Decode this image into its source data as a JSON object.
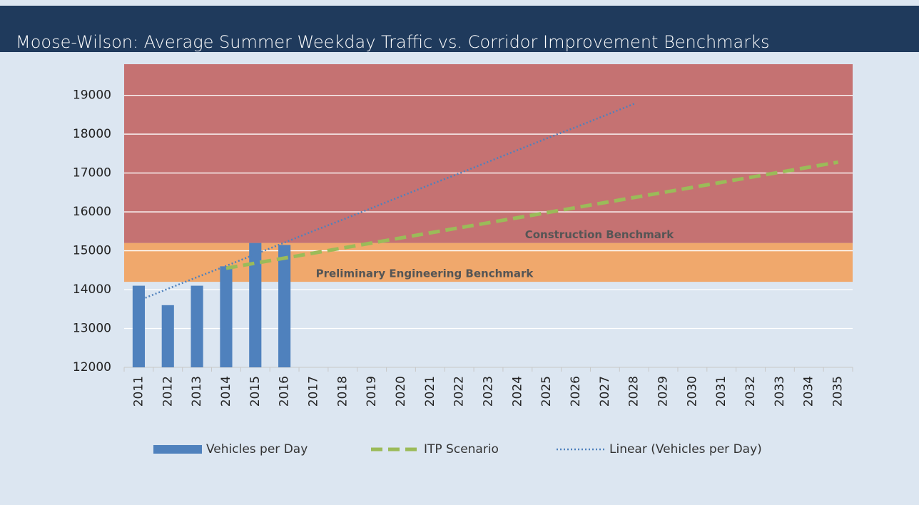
{
  "chart_data": {
    "type": "bar",
    "title": "Moose-Wilson: Average Summer Weekday Traffic vs. Corridor Improvement Benchmarks",
    "categories": [
      "2011",
      "2012",
      "2013",
      "2014",
      "2015",
      "2016",
      "2017",
      "2018",
      "2019",
      "2020",
      "2021",
      "2022",
      "2023",
      "2024",
      "2025",
      "2026",
      "2027",
      "2028",
      "2029",
      "2030",
      "2031",
      "2032",
      "2033",
      "2034",
      "2035"
    ],
    "series": [
      {
        "name": "Vehicles per Day",
        "style": "bar",
        "color": "#4f81bd",
        "values": [
          14100,
          13600,
          14100,
          14600,
          15200,
          15150,
          null,
          null,
          null,
          null,
          null,
          null,
          null,
          null,
          null,
          null,
          null,
          null,
          null,
          null,
          null,
          null,
          null,
          null,
          null
        ]
      },
      {
        "name": "ITP Scenario",
        "style": "dashed",
        "color": "#9bbb59",
        "values": [
          null,
          null,
          null,
          14550,
          14680,
          14810,
          14940,
          15070,
          15200,
          15330,
          15460,
          15590,
          15720,
          15850,
          15980,
          16110,
          16240,
          16370,
          16500,
          16630,
          16760,
          16890,
          17020,
          17150,
          17280
        ]
      },
      {
        "name": "Linear (Vehicles per Day)",
        "style": "dotted",
        "color": "#4f81bd",
        "values": [
          13720,
          14020,
          14320,
          14610,
          14910,
          15210,
          15510,
          15800,
          16100,
          16400,
          16700,
          16990,
          17290,
          17590,
          17890,
          18180,
          18480,
          18780,
          null,
          null,
          null,
          null,
          null,
          null,
          null
        ]
      }
    ],
    "bands": [
      {
        "label": "Preliminary Engineering Benchmark",
        "from": 14200,
        "to": 15200,
        "color": "#f0a86c"
      },
      {
        "label": "Construction Benchmark",
        "from": 15200,
        "to": 19800,
        "color": "#c57272"
      }
    ],
    "ylim": [
      12000,
      19800
    ],
    "yticks": [
      12000,
      13000,
      14000,
      15000,
      16000,
      17000,
      18000,
      19000
    ],
    "grid": true,
    "legend": "bottom"
  }
}
